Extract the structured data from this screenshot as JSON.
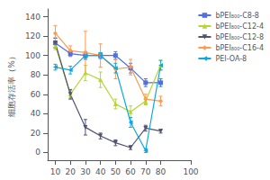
{
  "chart_data": {
    "type": "line",
    "ylabel": "细胞存活率（%）",
    "x": [
      10,
      20,
      30,
      40,
      50,
      60,
      70,
      80
    ],
    "series": [
      {
        "name": "bPEI₈₀₀-C8-8",
        "marker": "square",
        "values": [
          113,
          102,
          100,
          100,
          100,
          87,
          72,
          72
        ],
        "yerr": [
          5,
          3,
          4,
          3,
          4,
          5,
          4,
          4
        ]
      },
      {
        "name": "bPEI₈₀₀-C12-4",
        "marker": "triangle-up",
        "values": [
          110,
          60,
          82,
          75,
          50,
          42,
          53,
          90
        ],
        "yerr": [
          4,
          4,
          8,
          8,
          5,
          6,
          4,
          5
        ]
      },
      {
        "name": "bPEI₈₀₀-C12-8",
        "marker": "triangle-down",
        "values": [
          113,
          60,
          26,
          17,
          10,
          5,
          25,
          22
        ],
        "yerr": [
          5,
          5,
          8,
          3,
          3,
          2,
          3,
          2
        ]
      },
      {
        "name": "bPEI₈₀₀-C16-4",
        "marker": "diamond",
        "values": [
          123,
          105,
          103,
          100,
          86,
          88,
          55,
          53
        ],
        "yerr": [
          8,
          5,
          22,
          12,
          10,
          8,
          5,
          5
        ]
      },
      {
        "name": "PEI-OA-8",
        "marker": "tri-left",
        "values": [
          88,
          85,
          100,
          100,
          87,
          31,
          2,
          90
        ],
        "yerr": [
          3,
          4,
          3,
          3,
          5,
          5,
          2,
          5
        ]
      }
    ],
    "xlim": [
      5,
      100
    ],
    "ylim": [
      -8,
      148
    ],
    "xticks": [
      10,
      20,
      30,
      40,
      50,
      60,
      70,
      80,
      100
    ],
    "yticks": [
      0,
      20,
      40,
      60,
      80,
      100,
      120,
      140
    ],
    "grid": false,
    "legend": "upper right"
  }
}
